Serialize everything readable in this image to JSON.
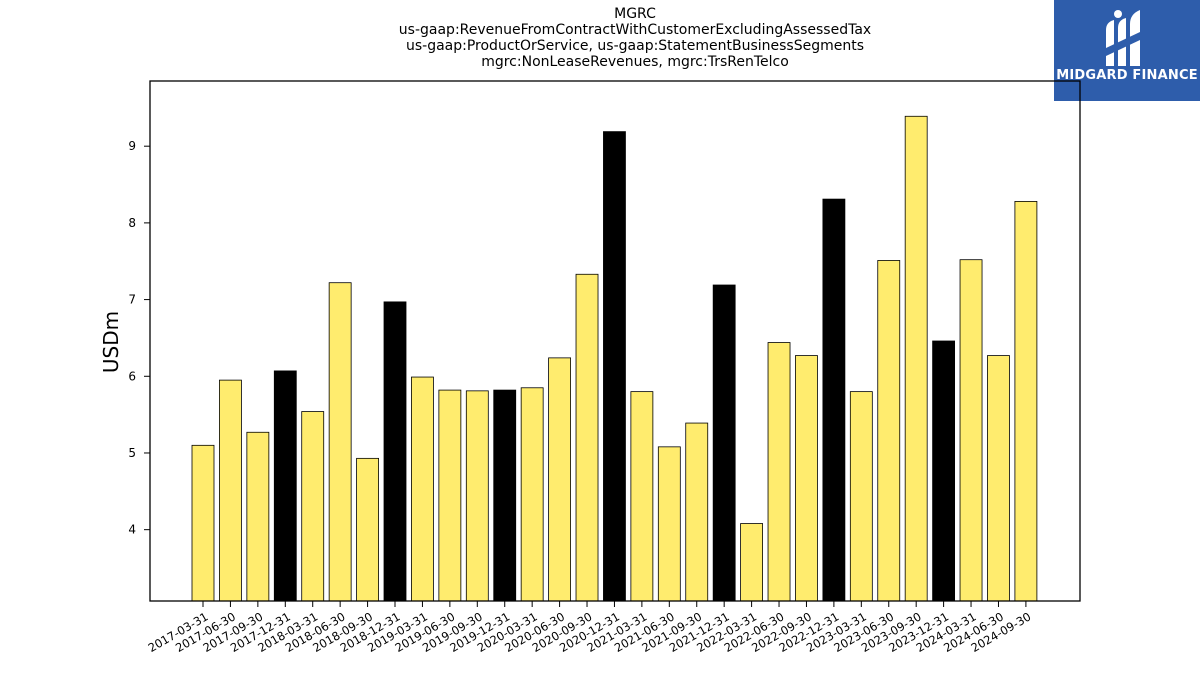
{
  "chart_data": {
    "type": "bar",
    "title_lines": [
      "MGRC",
      "us-gaap:RevenueFromContractWithCustomerExcludingAssessedTax",
      "us-gaap:ProductOrService, us-gaap:StatementBusinessSegments",
      "mgrc:NonLeaseRevenues, mgrc:TrsRenTelco"
    ],
    "ylabel": "USDm",
    "xlabel": "",
    "ylim": [
      3.07,
      9.85
    ],
    "yticks": [
      4,
      5,
      6,
      7,
      8,
      9
    ],
    "categories": [
      "2017-03-31",
      "2017-06-30",
      "2017-09-30",
      "2017-12-31",
      "2018-03-31",
      "2018-06-30",
      "2018-09-30",
      "2018-12-31",
      "2019-03-31",
      "2019-06-30",
      "2019-09-30",
      "2019-12-31",
      "2020-03-31",
      "2020-06-30",
      "2020-09-30",
      "2020-12-31",
      "2021-03-31",
      "2021-06-30",
      "2021-09-30",
      "2021-12-31",
      "2022-03-31",
      "2022-06-30",
      "2022-09-30",
      "2022-12-31",
      "2023-03-31",
      "2023-06-30",
      "2023-09-30",
      "2023-12-31",
      "2024-03-31",
      "2024-06-30",
      "2024-09-30"
    ],
    "values": [
      5.1,
      5.95,
      5.27,
      6.07,
      5.54,
      7.22,
      4.93,
      6.97,
      5.99,
      5.82,
      5.81,
      5.82,
      5.85,
      6.24,
      7.33,
      9.19,
      5.8,
      5.08,
      5.39,
      7.19,
      4.08,
      6.44,
      6.27,
      8.31,
      5.8,
      7.51,
      9.39,
      6.46,
      7.52,
      6.27,
      8.28
    ],
    "highlight": [
      false,
      false,
      false,
      true,
      false,
      false,
      false,
      true,
      false,
      false,
      false,
      true,
      false,
      false,
      false,
      true,
      false,
      false,
      false,
      true,
      false,
      false,
      false,
      true,
      false,
      false,
      false,
      true,
      false,
      false,
      false
    ],
    "colors": {
      "bar": "#ffec6e",
      "highlight": "#000000",
      "edge": "#000000"
    },
    "grid": false,
    "legend": "none"
  },
  "logo": {
    "text": "MIDGARD FINANCE",
    "color": "#2e5dab"
  }
}
